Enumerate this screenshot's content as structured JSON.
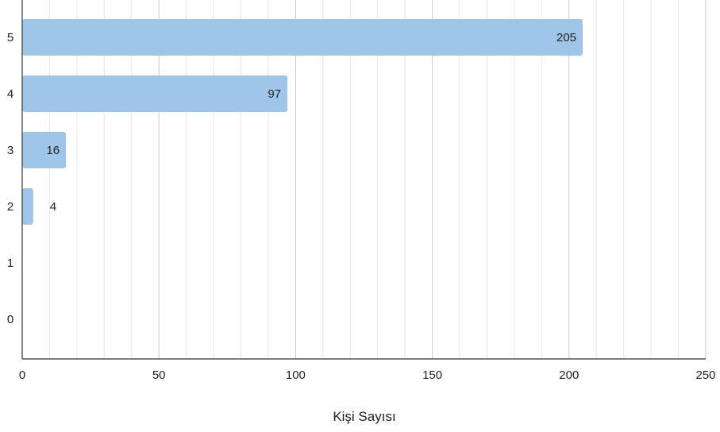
{
  "chart_data": {
    "type": "bar",
    "orientation": "horizontal",
    "categories": [
      "5",
      "4",
      "3",
      "2",
      "1",
      "0"
    ],
    "values": [
      205,
      97,
      16,
      4,
      null,
      null
    ],
    "data_labels": [
      "205",
      "97",
      "16",
      "4",
      "",
      ""
    ],
    "xlabel": "Kişi Sayısı",
    "ylabel": "",
    "xlim": [
      0,
      250
    ],
    "x_ticks": [
      0,
      50,
      100,
      150,
      200,
      250
    ],
    "x_tick_labels": [
      "0",
      "50",
      "100",
      "150",
      "200",
      "250"
    ],
    "minor_step": 10,
    "grid": true,
    "colors": {
      "bar": "#9fc5e8",
      "major_grid": "#c8c8c8",
      "minor_grid": "#e6e6e6",
      "axis": "#333333"
    }
  }
}
